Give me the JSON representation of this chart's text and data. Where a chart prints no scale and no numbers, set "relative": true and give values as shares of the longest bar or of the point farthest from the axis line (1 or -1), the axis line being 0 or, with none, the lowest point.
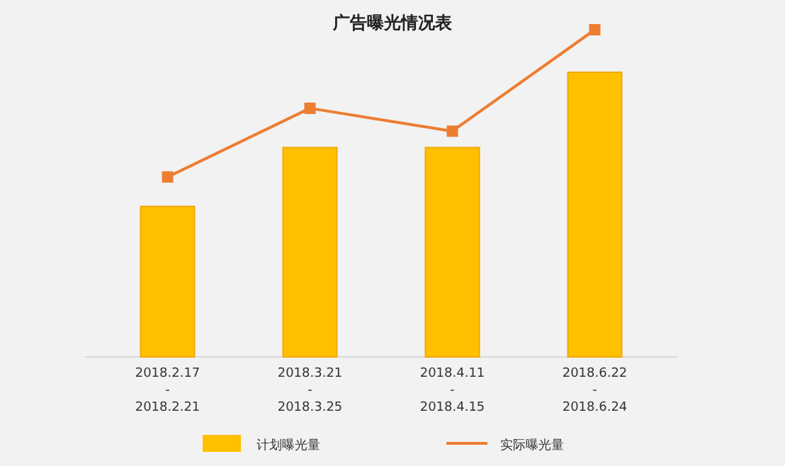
{
  "chart_data": {
    "type": "bar",
    "title": "广告曝光情况表",
    "relative": true,
    "legend": "bottom",
    "categories": [
      "2018.2.17\n-\n2018.2.21",
      "2018.3.21\n-\n2018.3.25",
      "2018.4.11\n-\n2018.4.15",
      "2018.6.22\n-\n2018.6.24"
    ],
    "series": [
      {
        "name": "计划曝光量",
        "color": "#ffc000",
        "values": [
          0.46,
          0.64,
          0.64,
          0.87
        ]
      },
      {
        "name": "实际曝光量",
        "type": "line",
        "color": "#ed7d31",
        "marker": "square",
        "values": [
          0.55,
          0.76,
          0.69,
          1
        ]
      }
    ]
  }
}
